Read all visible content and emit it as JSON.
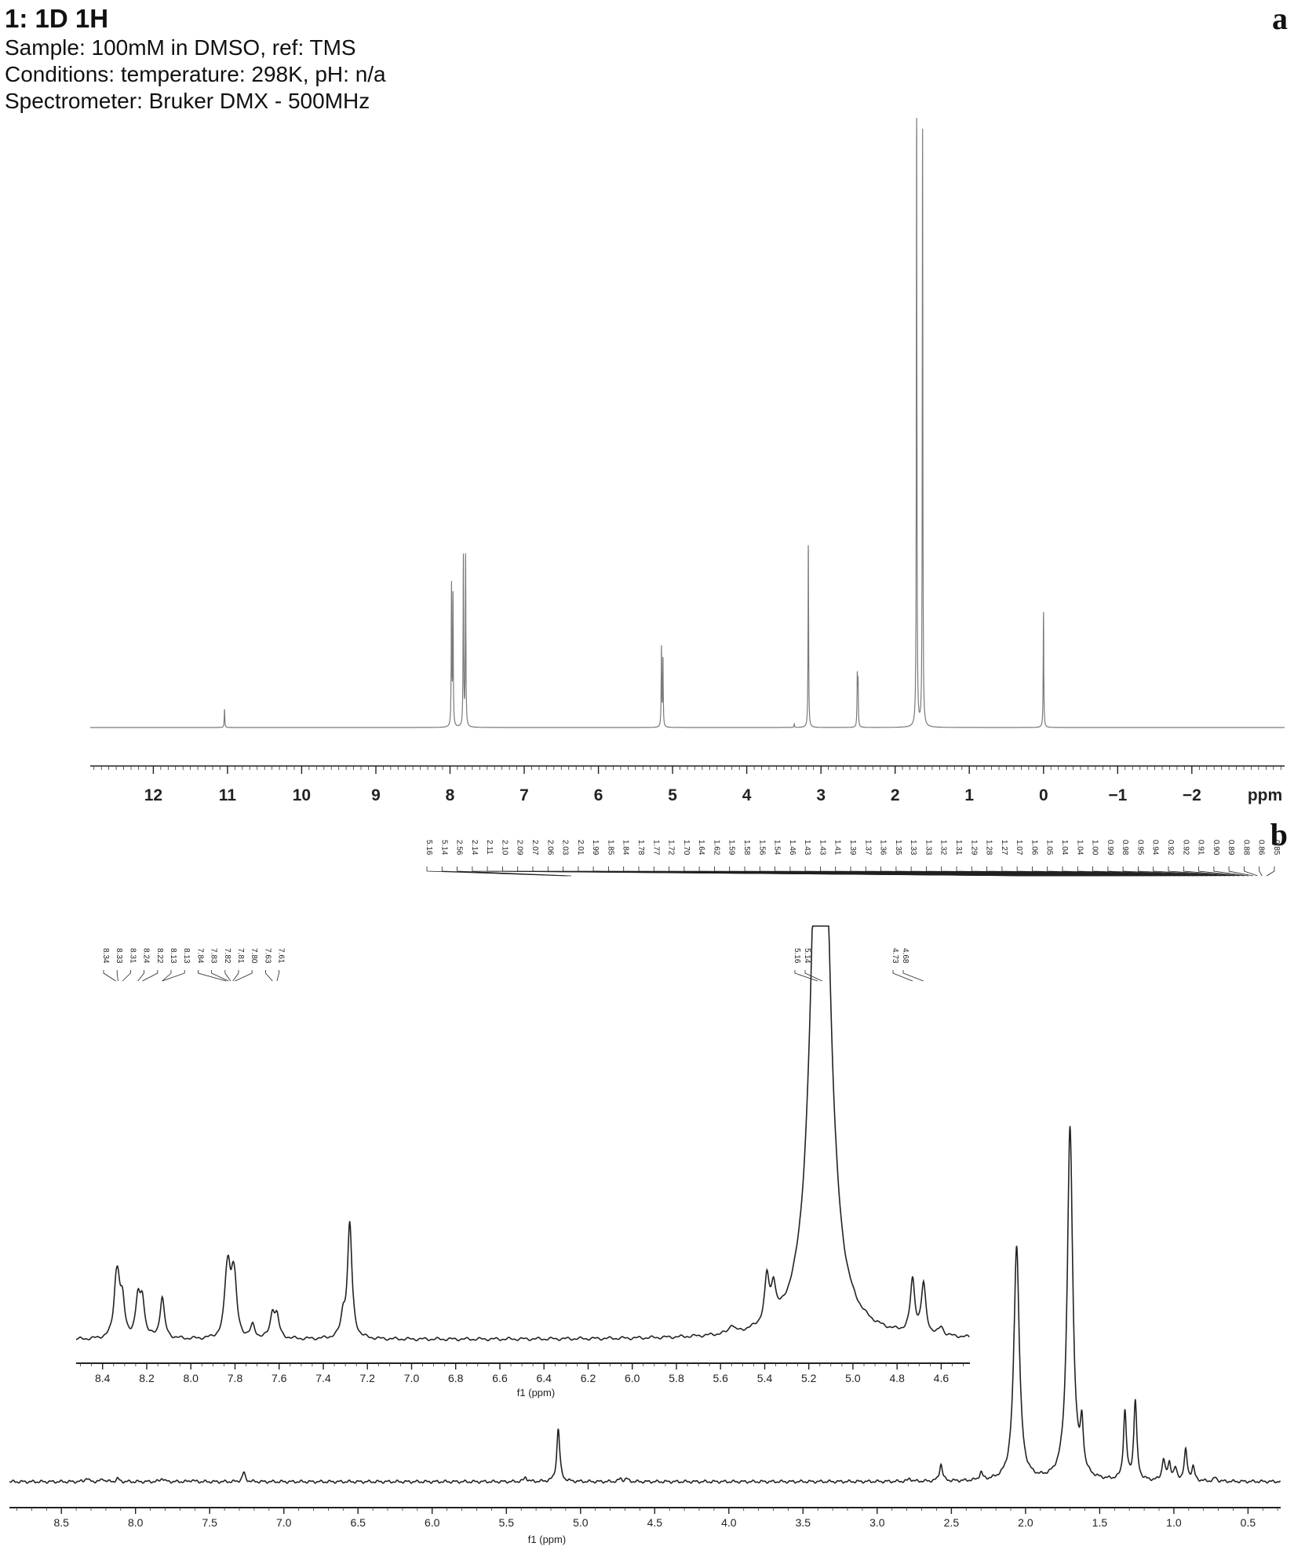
{
  "header": {
    "title": "1: 1D 1H",
    "sample": "Sample: 100mM in DMSO, ref: TMS",
    "conditions": "Conditions: temperature: 298K, pH: n/a",
    "spectrometer": "Spectrometer: Bruker DMX - 500MHz"
  },
  "panel_labels": {
    "a": "a",
    "b": "b"
  },
  "chart_data": [
    {
      "type": "line",
      "panel": "a",
      "title": "",
      "xlabel": "ppm",
      "ylabel": "",
      "xlim": [
        12.85,
        -3.25
      ],
      "reversed_x": true,
      "ticks": [
        "12",
        "11",
        "10",
        "9",
        "8",
        "7",
        "6",
        "5",
        "4",
        "3",
        "2",
        "1",
        "0",
        "−1",
        "−2"
      ],
      "tick_values": [
        12,
        11,
        10,
        9,
        8,
        7,
        6,
        5,
        4,
        3,
        2,
        1,
        0,
        -1,
        -2
      ],
      "color": "#7a7a7a",
      "peaks": [
        {
          "ppm": 11.04,
          "height": 0.03
        },
        {
          "ppm": 7.98,
          "height": 0.23
        },
        {
          "ppm": 7.96,
          "height": 0.21
        },
        {
          "ppm": 7.82,
          "height": 0.28
        },
        {
          "ppm": 7.79,
          "height": 0.28
        },
        {
          "ppm": 5.15,
          "height": 0.13
        },
        {
          "ppm": 5.13,
          "height": 0.11
        },
        {
          "ppm": 3.36,
          "height": 0.006
        },
        {
          "ppm": 3.17,
          "height": 0.3
        },
        {
          "ppm": 2.51,
          "height": 0.08
        },
        {
          "ppm": 2.5,
          "height": 0.07
        },
        {
          "ppm": 1.71,
          "height": 1.0
        },
        {
          "ppm": 1.63,
          "height": 0.97
        },
        {
          "ppm": 0.0,
          "height": 0.19
        }
      ]
    },
    {
      "type": "line",
      "panel": "b-main",
      "title": "",
      "xlabel": "f1 (ppm)",
      "ylabel": "",
      "xlim": [
        8.85,
        0.28
      ],
      "reversed_x": true,
      "ticks": [
        "8.5",
        "8.0",
        "7.5",
        "7.0",
        "6.5",
        "6.0",
        "5.5",
        "5.0",
        "4.5",
        "4.0",
        "3.5",
        "3.0",
        "2.5",
        "2.0",
        "1.5",
        "1.0",
        "0.5"
      ],
      "tick_values": [
        8.5,
        8.0,
        7.5,
        7.0,
        6.5,
        6.0,
        5.5,
        5.0,
        4.5,
        4.0,
        3.5,
        3.0,
        2.5,
        2.0,
        1.5,
        1.0,
        0.5
      ],
      "color": "#222222",
      "peaks": [
        {
          "ppm": 8.33,
          "height": 0.01
        },
        {
          "ppm": 8.22,
          "height": 0.008
        },
        {
          "ppm": 8.12,
          "height": 0.008
        },
        {
          "ppm": 7.82,
          "height": 0.01
        },
        {
          "ppm": 7.62,
          "height": 0.005
        },
        {
          "ppm": 7.27,
          "height": 0.024
        },
        {
          "ppm": 5.37,
          "height": 0.012
        },
        {
          "ppm": 5.15,
          "height": 0.14
        },
        {
          "ppm": 4.73,
          "height": 0.008
        },
        {
          "ppm": 4.69,
          "height": 0.008
        },
        {
          "ppm": 2.78,
          "height": 0.008
        },
        {
          "ppm": 2.57,
          "height": 0.045
        },
        {
          "ppm": 2.3,
          "height": 0.02
        },
        {
          "ppm": 2.06,
          "height": 0.62
        },
        {
          "ppm": 1.7,
          "height": 0.93
        },
        {
          "ppm": 1.62,
          "height": 0.12
        },
        {
          "ppm": 1.33,
          "height": 0.18
        },
        {
          "ppm": 1.26,
          "height": 0.21
        },
        {
          "ppm": 1.07,
          "height": 0.055
        },
        {
          "ppm": 1.03,
          "height": 0.045
        },
        {
          "ppm": 0.99,
          "height": 0.03
        },
        {
          "ppm": 0.92,
          "height": 0.08
        },
        {
          "ppm": 0.87,
          "height": 0.035
        },
        {
          "ppm": 0.72,
          "height": 0.01
        }
      ],
      "peak_labels": [
        "5.16",
        "5.14",
        "2.56",
        "2.14",
        "2.11",
        "2.10",
        "2.09",
        "2.07",
        "2.06",
        "2.03",
        "2.01",
        "1.99",
        "1.85",
        "1.84",
        "1.78",
        "1.77",
        "1.72",
        "1.70",
        "1.64",
        "1.62",
        "1.59",
        "1.58",
        "1.56",
        "1.54",
        "1.46",
        "1.43",
        "1.43",
        "1.41",
        "1.39",
        "1.37",
        "1.36",
        "1.35",
        "1.33",
        "1.33",
        "1.32",
        "1.31",
        "1.29",
        "1.28",
        "1.27",
        "1.07",
        "1.06",
        "1.05",
        "1.04",
        "1.04",
        "1.00",
        "0.99",
        "0.98",
        "0.95",
        "0.94",
        "0.92",
        "0.92",
        "0.91",
        "0.90",
        "0.89",
        "0.88",
        "0.86",
        "0.85"
      ]
    },
    {
      "type": "line",
      "panel": "b-inset",
      "title": "",
      "xlabel": "f1 (ppm)",
      "ylabel": "",
      "xlim": [
        8.52,
        4.47
      ],
      "reversed_x": true,
      "ticks": [
        "8.4",
        "8.2",
        "8.0",
        "7.8",
        "7.6",
        "7.4",
        "7.2",
        "7.0",
        "6.8",
        "6.6",
        "6.4",
        "6.2",
        "6.0",
        "5.8",
        "5.6",
        "5.4",
        "5.2",
        "5.0",
        "4.8",
        "4.6"
      ],
      "tick_values": [
        8.4,
        8.2,
        8.0,
        7.8,
        7.6,
        7.4,
        7.2,
        7.0,
        6.8,
        6.6,
        6.4,
        6.2,
        6.0,
        5.8,
        5.6,
        5.4,
        5.2,
        5.0,
        4.8,
        4.6
      ],
      "color": "#222222",
      "peaks": [
        {
          "ppm": 8.34,
          "height": 0.09
        },
        {
          "ppm": 8.33,
          "height": 0.1
        },
        {
          "ppm": 8.31,
          "height": 0.08
        },
        {
          "ppm": 8.24,
          "height": 0.09
        },
        {
          "ppm": 8.22,
          "height": 0.09
        },
        {
          "ppm": 8.13,
          "height": 0.1
        },
        {
          "ppm": 7.84,
          "height": 0.08
        },
        {
          "ppm": 7.83,
          "height": 0.12
        },
        {
          "ppm": 7.81,
          "height": 0.1
        },
        {
          "ppm": 7.8,
          "height": 0.08
        },
        {
          "ppm": 7.72,
          "height": 0.03
        },
        {
          "ppm": 7.63,
          "height": 0.06
        },
        {
          "ppm": 7.61,
          "height": 0.05
        },
        {
          "ppm": 7.31,
          "height": 0.05
        },
        {
          "ppm": 7.28,
          "height": 0.28
        },
        {
          "ppm": 5.55,
          "height": 0.02
        },
        {
          "ppm": 5.39,
          "height": 0.11
        },
        {
          "ppm": 5.36,
          "height": 0.08
        },
        {
          "ppm": 5.16,
          "height": 1.0
        },
        {
          "ppm": 5.13,
          "height": 0.8
        },
        {
          "ppm": 4.73,
          "height": 0.13
        },
        {
          "ppm": 4.68,
          "height": 0.12
        },
        {
          "ppm": 4.6,
          "height": 0.02
        }
      ],
      "peak_labels": [
        "8.34",
        "8.33",
        "8.31",
        "8.24",
        "8.22",
        "8.13",
        "8.13",
        "7.84",
        "7.83",
        "7.82",
        "7.81",
        "7.80",
        "7.63",
        "7.61",
        "5.16",
        "5.14",
        "4.73",
        "4.68"
      ]
    }
  ]
}
